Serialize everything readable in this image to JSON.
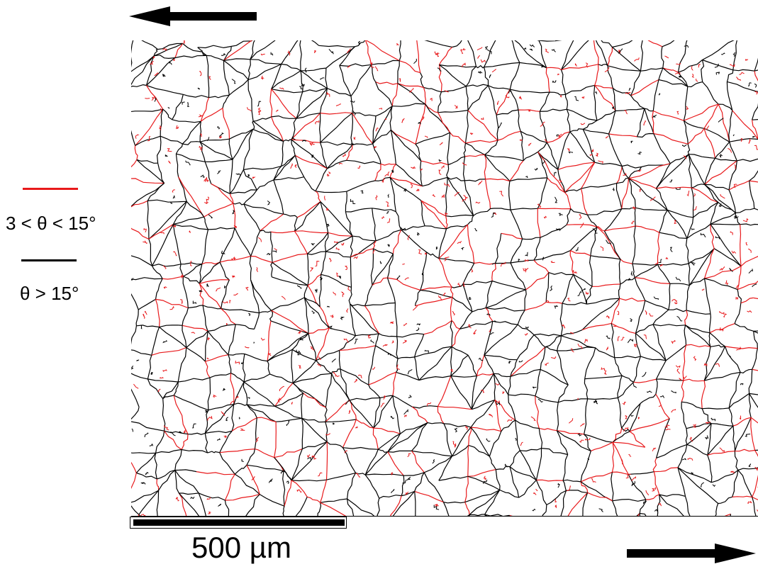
{
  "legend": {
    "low_angle": {
      "label": "3 < θ < 15°",
      "color": "#e8191b"
    },
    "high_angle": {
      "label": "θ > 15°",
      "color": "#000000"
    }
  },
  "scale_bar": {
    "label": "500 µm",
    "color": "#000000"
  },
  "arrows": {
    "color": "#000000",
    "top": "left",
    "bottom": "right"
  },
  "micrograph": {
    "background": "#ffffff"
  }
}
